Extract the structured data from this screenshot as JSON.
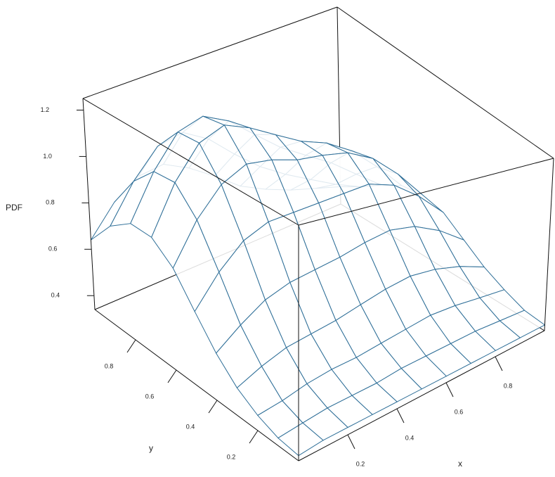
{
  "chart_data": {
    "type": "surface",
    "zlabel": "PDF",
    "xlabel": "x",
    "ylabel": "y",
    "color": "#2f6f98",
    "x": [
      0,
      0.1,
      0.2,
      0.3,
      0.4,
      0.5,
      0.6,
      0.7,
      0.8,
      0.9,
      1
    ],
    "y": [
      0,
      0.1,
      0.2,
      0.3,
      0.4,
      0.5,
      0.6,
      0.7,
      0.8,
      0.9,
      1
    ],
    "z": [
      [
        0.36,
        0.37,
        0.37,
        0.37,
        0.37,
        0.37,
        0.37,
        0.37,
        0.37,
        0.37,
        0.37
      ],
      [
        0.37,
        0.38,
        0.39,
        0.39,
        0.39,
        0.4,
        0.4,
        0.4,
        0.4,
        0.39,
        0.38
      ],
      [
        0.4,
        0.41,
        0.43,
        0.44,
        0.44,
        0.45,
        0.46,
        0.47,
        0.46,
        0.44,
        0.42
      ],
      [
        0.45,
        0.49,
        0.52,
        0.53,
        0.54,
        0.56,
        0.58,
        0.59,
        0.57,
        0.53,
        0.47
      ],
      [
        0.53,
        0.6,
        0.66,
        0.69,
        0.7,
        0.71,
        0.73,
        0.74,
        0.71,
        0.64,
        0.54
      ],
      [
        0.64,
        0.76,
        0.85,
        0.89,
        0.89,
        0.89,
        0.89,
        0.89,
        0.84,
        0.74,
        0.61
      ],
      [
        0.76,
        0.92,
        1.03,
        1.08,
        1.06,
        1.02,
        1.0,
        0.97,
        0.9,
        0.78,
        0.63
      ],
      [
        0.83,
        1.02,
        1.15,
        1.19,
        1.14,
        1.07,
        1.0,
        0.95,
        0.87,
        0.75,
        0.61
      ],
      [
        0.83,
        1.01,
        1.14,
        1.17,
        1.11,
        1.01,
        0.91,
        0.83,
        0.75,
        0.65,
        0.55
      ],
      [
        0.76,
        0.91,
        1.02,
        1.04,
        0.97,
        0.86,
        0.76,
        0.68,
        0.61,
        0.54,
        0.48
      ],
      [
        0.64,
        0.76,
        0.83,
        0.84,
        0.78,
        0.7,
        0.61,
        0.55,
        0.5,
        0.46,
        0.42
      ]
    ],
    "xlim": [
      0,
      1
    ],
    "ylim": [
      0,
      1
    ],
    "zlim": [
      0.34,
      1.25
    ],
    "xticks": [
      0.2,
      0.4,
      0.6,
      0.8
    ],
    "yticks": [
      0.2,
      0.4,
      0.6,
      0.8
    ],
    "zticks": [
      0.4,
      0.6,
      0.8,
      {
        "value": 1,
        "label": "1.0"
      },
      1.2
    ]
  }
}
